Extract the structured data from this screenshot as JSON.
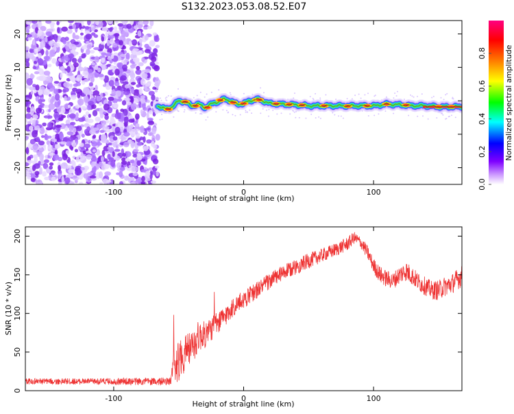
{
  "title": "S132.2023.053.08.52.E07",
  "colors": {
    "snr_line": "#ee3333",
    "ridge_line": "#1a8a1a",
    "axis": "#000000"
  },
  "chart_data": [
    {
      "type": "heatmap",
      "title": "S132.2023.053.08.52.E07",
      "xlabel": "Height of straight line (km)",
      "ylabel": "Frequency (Hz)",
      "xlim": [
        -168,
        168
      ],
      "ylim": [
        -25,
        24
      ],
      "xticks": [
        -100,
        0,
        100
      ],
      "yticks": [
        -20,
        -10,
        0,
        10,
        20
      ],
      "colorbar": {
        "label": "Normalized spectral amplitude",
        "range": [
          0,
          1
        ],
        "ticks": [
          0.0,
          0.2,
          0.4,
          0.6,
          0.8
        ],
        "colormap": [
          "#ffffff",
          "#cc99ff",
          "#7f00ff",
          "#0000ff",
          "#00ffff",
          "#00ff00",
          "#ffff00",
          "#ff8000",
          "#ff0000",
          "#ff0080"
        ]
      },
      "noise_region": {
        "x_range": [
          -168,
          -66
        ],
        "amplitude_range": [
          0.05,
          0.25
        ]
      },
      "ridge": {
        "x": [
          -66,
          -60,
          -55,
          -50,
          -45,
          -40,
          -35,
          -30,
          -25,
          -20,
          -15,
          -10,
          -5,
          0,
          5,
          10,
          15,
          20,
          30,
          40,
          50,
          60,
          70,
          80,
          90,
          100,
          110,
          120,
          130,
          140,
          150,
          160,
          168
        ],
        "y": [
          -1.5,
          -2.5,
          -1.8,
          0.0,
          -0.3,
          -1.5,
          -1.0,
          -2.0,
          -1.0,
          -0.3,
          0.5,
          0.0,
          -1.0,
          -0.8,
          0.0,
          0.5,
          0.0,
          -0.8,
          -1.0,
          -1.2,
          -1.5,
          -1.5,
          -1.5,
          -1.5,
          -1.5,
          -1.5,
          -1.0,
          -1.2,
          -1.5,
          -1.5,
          -1.8,
          -1.8,
          -1.8
        ]
      }
    },
    {
      "type": "line",
      "xlabel": "Height of straight line (km)",
      "ylabel": "SNR (10 * v/v)",
      "xlim": [
        -168,
        168
      ],
      "ylim": [
        0,
        212
      ],
      "xticks": [
        -100,
        0,
        100
      ],
      "yticks": [
        0,
        50,
        100,
        150,
        200
      ],
      "series": [
        {
          "x": [
            -168,
            -140,
            -110,
            -80,
            -56,
            -54,
            -52,
            -50,
            -45,
            -40,
            -35,
            -30,
            -25,
            -20,
            -15,
            -10,
            -5,
            0,
            10,
            20,
            30,
            40,
            50,
            60,
            70,
            80,
            85,
            90,
            95,
            100,
            105,
            110,
            115,
            120,
            125,
            130,
            135,
            140,
            145,
            150,
            155,
            160,
            165,
            168
          ],
          "values": [
            12,
            12,
            12,
            12,
            12,
            30,
            42,
            38,
            50,
            55,
            70,
            72,
            80,
            88,
            95,
            105,
            112,
            118,
            130,
            142,
            152,
            160,
            168,
            175,
            182,
            190,
            198,
            192,
            180,
            162,
            150,
            145,
            142,
            150,
            155,
            148,
            140,
            135,
            130,
            130,
            135,
            138,
            145,
            148
          ],
          "noise": [
            4,
            4,
            4,
            5,
            5,
            25,
            30,
            28,
            25,
            22,
            20,
            18,
            16,
            15,
            14,
            13,
            12,
            12,
            11,
            11,
            10,
            10,
            10,
            9,
            9,
            9,
            8,
            8,
            9,
            10,
            11,
            11,
            11,
            12,
            13,
            12,
            12,
            12,
            12,
            13,
            13,
            13,
            14,
            14
          ]
        }
      ]
    }
  ]
}
